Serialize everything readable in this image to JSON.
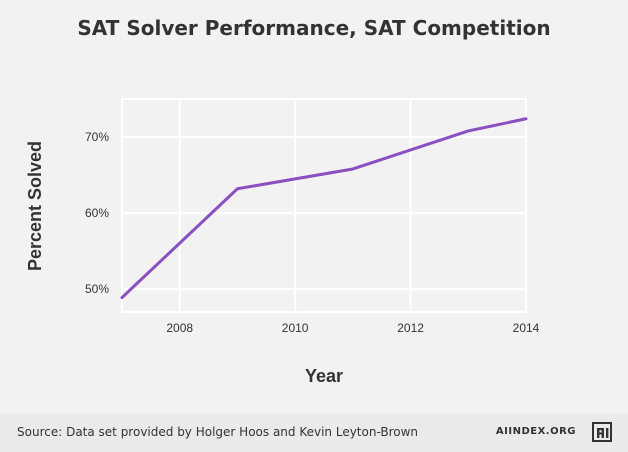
{
  "chart_data": {
    "type": "line",
    "title": "SAT Solver Performance, SAT Competition",
    "xlabel": "Year",
    "ylabel": "Percent Solved",
    "x": [
      2007,
      2009,
      2011,
      2013,
      2014
    ],
    "series": [
      {
        "values": [
          48.9,
          63.2,
          65.8,
          70.8,
          72.4
        ]
      }
    ],
    "xlim": [
      2007,
      2014
    ],
    "ylim": [
      47,
      75
    ],
    "xticks": [
      2008,
      2010,
      2012,
      2014
    ],
    "yticks": [
      50,
      60,
      70
    ],
    "ytick_labels": [
      "50%",
      "60%",
      "70%"
    ],
    "grid": true,
    "legend": "none",
    "line_color": "#8a4fc0"
  },
  "footer": {
    "source": "Source: Data set provided by Holger Hoos and Kevin Leyton-Brown",
    "brand": "AIINDEX.ORG"
  },
  "colors": {
    "background": "#f2f2f2",
    "footer_background": "#eaeaea",
    "grid": "#ffffff",
    "text": "#333333"
  }
}
